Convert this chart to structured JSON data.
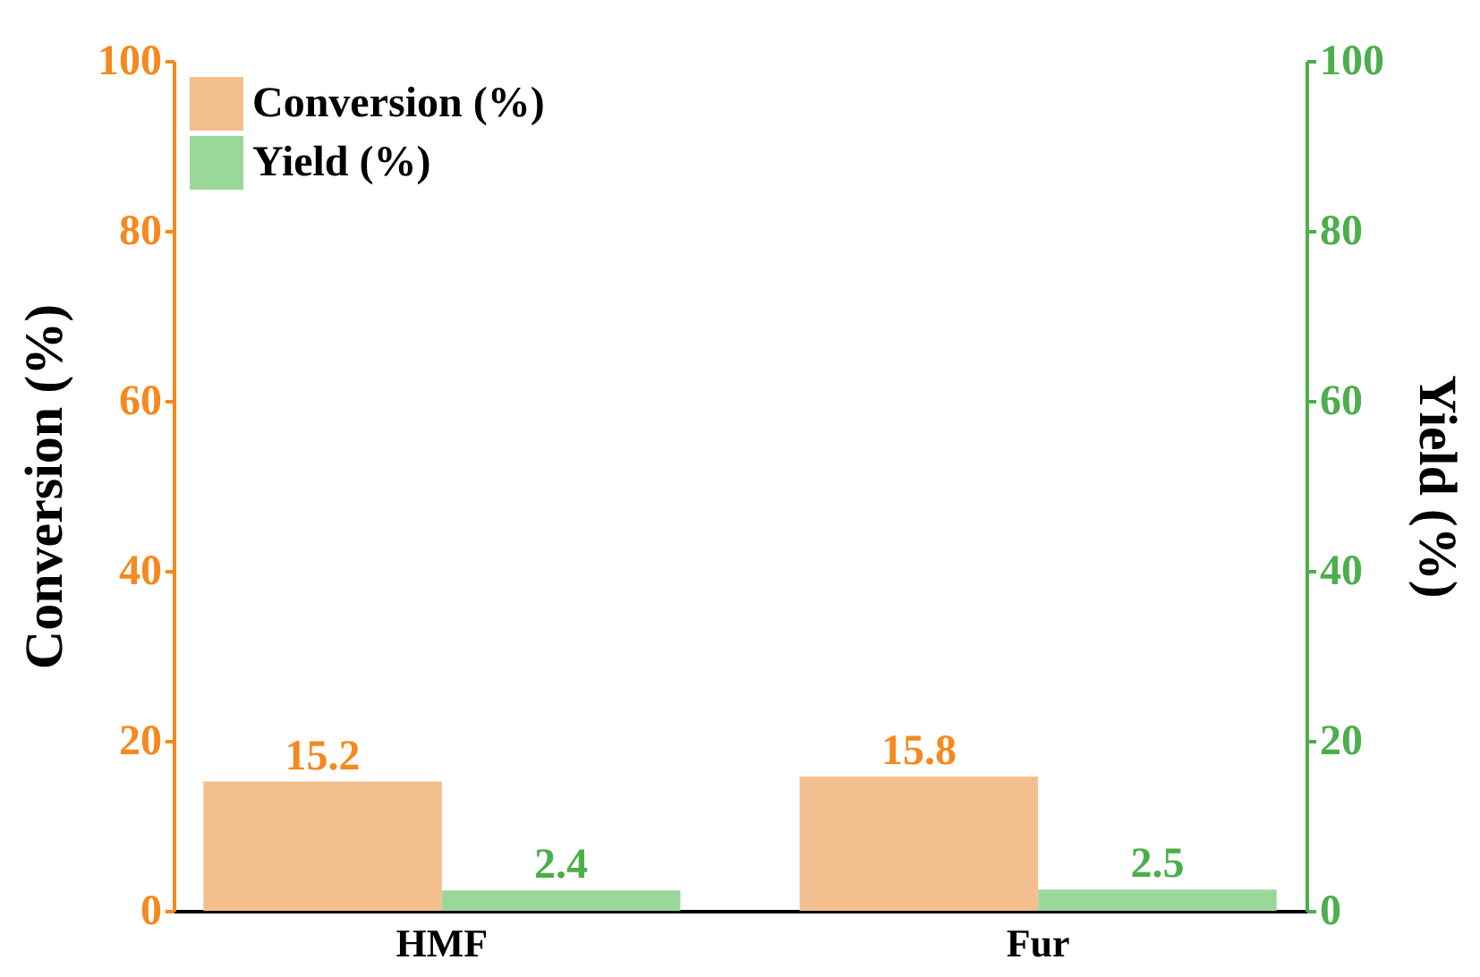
{
  "chart_data": {
    "type": "bar",
    "categories": [
      "HMF",
      "Fur"
    ],
    "series": [
      {
        "name": "Conversion (%)",
        "color": "#f4bf8e",
        "values": [
          15.2,
          15.8
        ]
      },
      {
        "name": "Yield (%)",
        "color": "#9ad89a",
        "values": [
          2.4,
          2.5
        ],
        "axis": "y2"
      }
    ],
    "ylabel": "Conversion (%)",
    "y2label": "Yield (%)",
    "ylim": [
      0,
      100
    ],
    "yticks": [
      0,
      20,
      40,
      60,
      80,
      100
    ],
    "y2lim": [
      0,
      100
    ],
    "y2ticks": [
      0,
      20,
      40,
      60,
      80,
      100
    ],
    "data_labels": true,
    "legend": "top left"
  }
}
